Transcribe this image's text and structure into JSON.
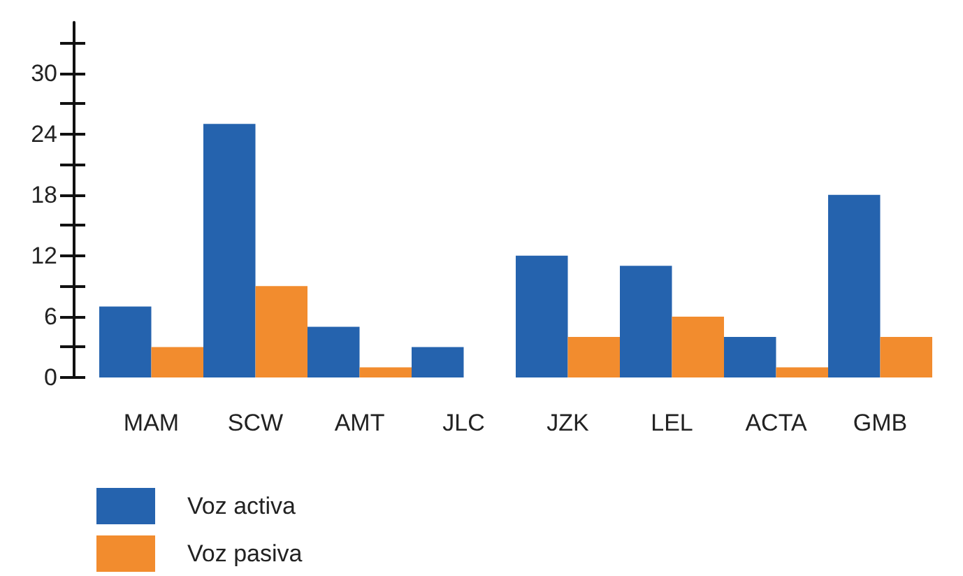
{
  "chart_data": {
    "type": "bar",
    "categories": [
      "MAM",
      "SCW",
      "AMT",
      "JLC",
      "JZK",
      "LEL",
      "ACTA",
      "GMB"
    ],
    "series": [
      {
        "name": "Voz activa",
        "color": "#2563ae",
        "values": [
          7,
          25,
          5,
          3,
          12,
          11,
          4,
          18
        ]
      },
      {
        "name": "Voz pasiva",
        "color": "#f28c2e",
        "values": [
          3,
          9,
          1,
          0,
          4,
          6,
          1,
          4
        ]
      }
    ],
    "ylim": [
      0,
      35
    ],
    "yticks": [
      0,
      {
        "value": 3,
        "label": null
      },
      6,
      {
        "value": 9,
        "label": null
      },
      12,
      {
        "value": 15,
        "label": null
      },
      18,
      {
        "value": 21,
        "label": null
      },
      24,
      {
        "value": 27,
        "label": null
      },
      30,
      {
        "value": 33,
        "label": null
      }
    ],
    "grid": false,
    "legend": "bottom left"
  }
}
